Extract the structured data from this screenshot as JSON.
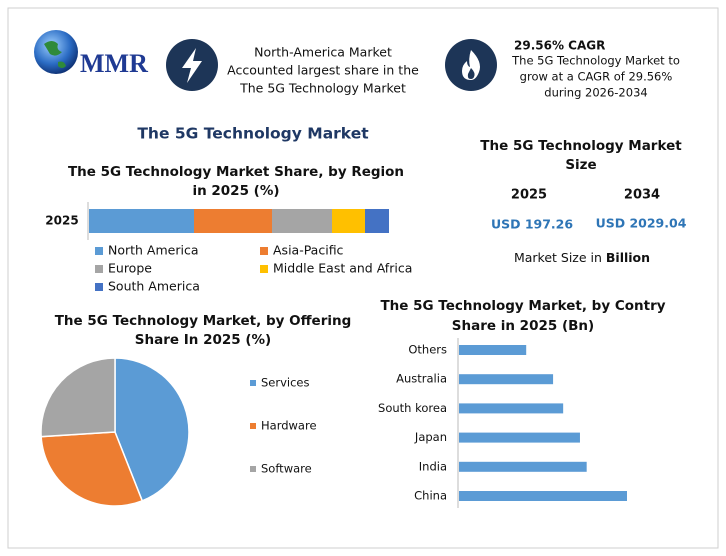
{
  "header": {
    "logo": "MMR",
    "highlight": [
      "North-America Market",
      "Accounted largest share in the",
      "The 5G Technology Market"
    ],
    "cagr_title": "29.56% CAGR",
    "cagr_text": [
      "The 5G Technology Market to",
      "grow at a CAGR of 29.56%",
      "during 2026-2034"
    ]
  },
  "title": "The 5G Technology Market",
  "market_size": {
    "title": [
      "The 5G Technology Market",
      "Size"
    ],
    "columns": [
      {
        "year": "2025",
        "value": "USD 197.26"
      },
      {
        "year": "2034",
        "value": "USD 2029.04"
      }
    ],
    "note": "Market Size in ",
    "note_unit": "Billion"
  },
  "chart_data": [
    {
      "type": "stacked-bar",
      "title": [
        "The 5G Technology Market Share, by Region",
        "in 2025 (%)"
      ],
      "categories": [
        "2025"
      ],
      "xlim": [
        0,
        100
      ],
      "series": [
        {
          "name": "North America",
          "color": "#5b9bd5",
          "values": [
            35
          ]
        },
        {
          "name": "Asia-Pacific",
          "color": "#ed7d31",
          "values": [
            26
          ]
        },
        {
          "name": "Europe",
          "color": "#a5a5a5",
          "values": [
            20
          ]
        },
        {
          "name": "Middle East and Africa",
          "color": "#ffc000",
          "values": [
            11
          ]
        },
        {
          "name": "South America",
          "color": "#4472c4",
          "values": [
            8
          ]
        }
      ]
    },
    {
      "type": "pie",
      "title": [
        "The 5G Technology Market, by Offering",
        "Share In 2025 (%)"
      ],
      "categories": [
        "Services",
        "Hardware",
        "Software"
      ],
      "values": [
        44,
        30,
        26
      ],
      "colors": [
        "#5b9bd5",
        "#ed7d31",
        "#a5a5a5"
      ]
    },
    {
      "type": "bar",
      "title": [
        "The 5G Technology Market, by Contry",
        "Share in 2025 (Bn)"
      ],
      "categories": [
        "Others",
        "Australia",
        "South korea",
        "Japan",
        "India",
        "China"
      ],
      "values": [
        20,
        28,
        31,
        36,
        38,
        50
      ],
      "xlim": [
        0,
        60
      ],
      "color": "#5b9bd5"
    }
  ]
}
